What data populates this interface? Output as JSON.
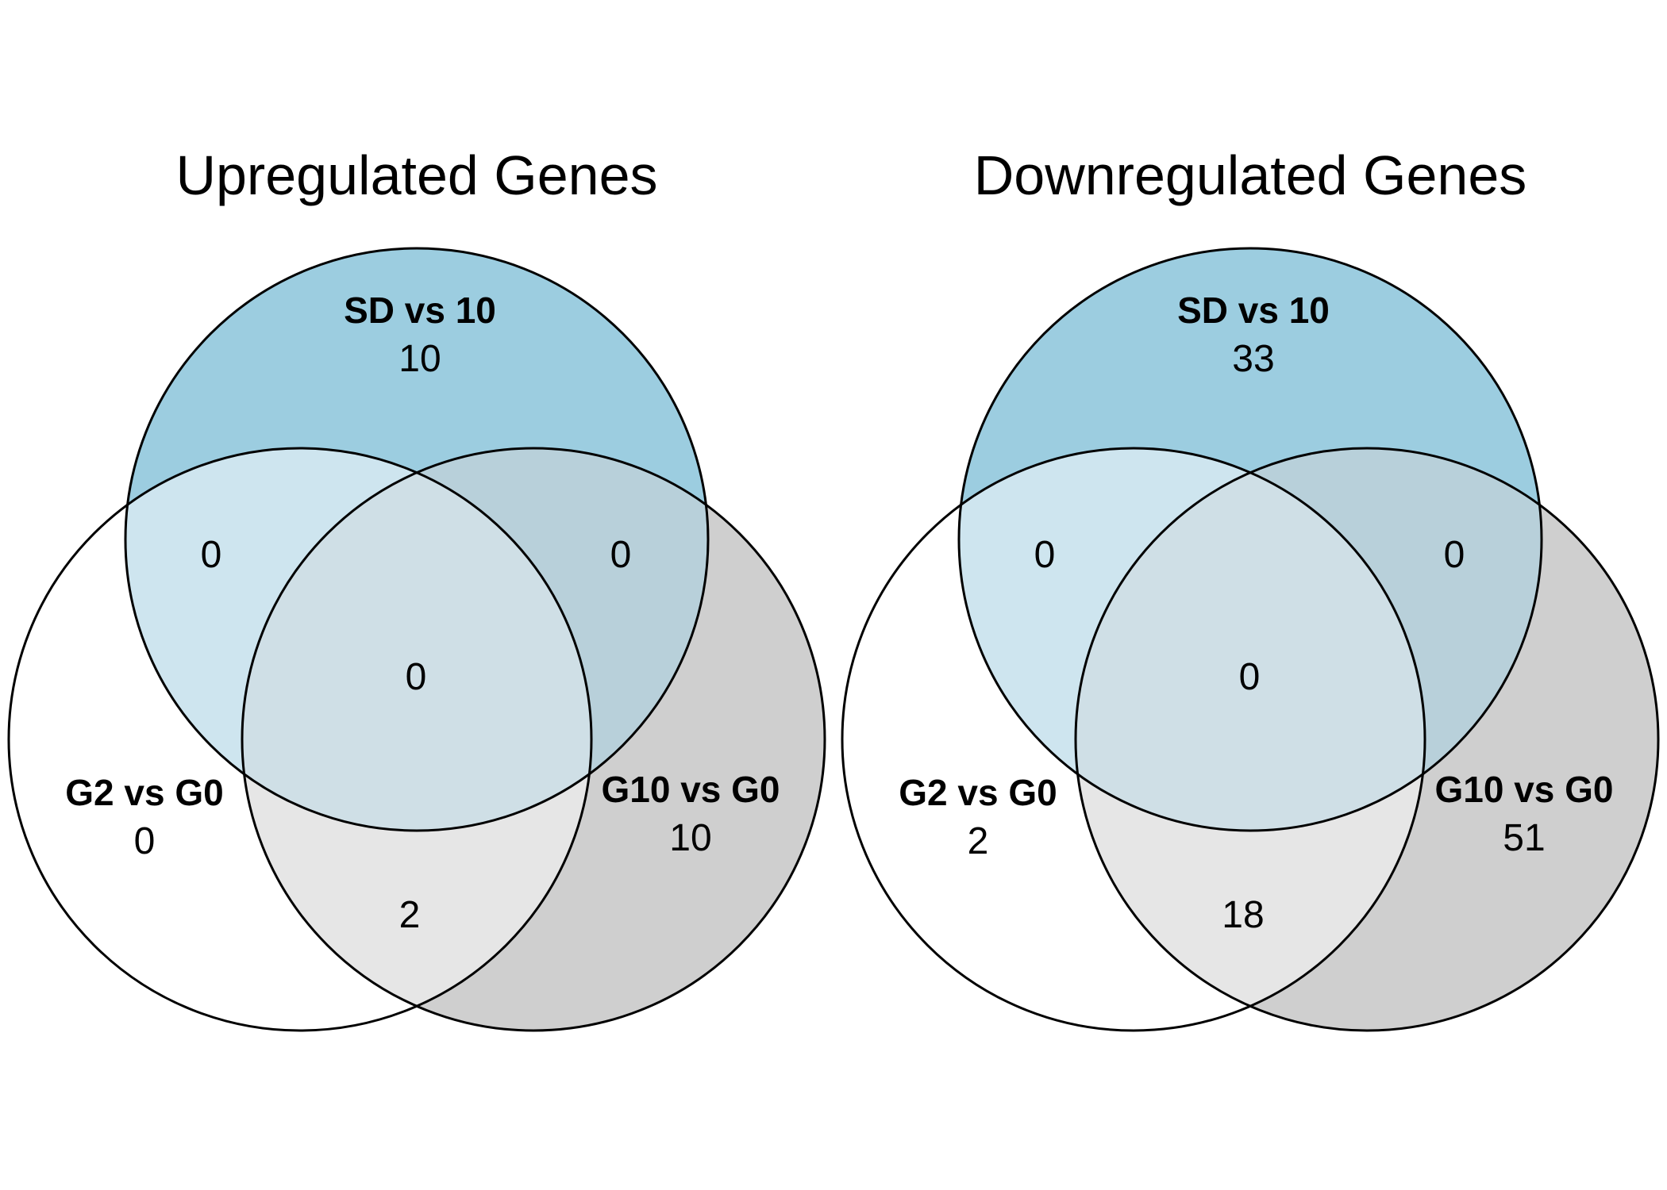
{
  "colors": {
    "set_a": "#9ccde0",
    "set_b": "#ffffff",
    "set_c": "#cfcfcf",
    "region_ab": "#cee5ef",
    "region_ac": "#b8d0da",
    "region_bc": "#e6e6e6",
    "region_abc": "#cfdfe6",
    "outline": "#000000"
  },
  "diagrams": [
    {
      "title": "Upregulated Genes",
      "sets": {
        "a": {
          "name": "SD vs 10",
          "count": "10"
        },
        "b": {
          "name": "G2 vs G0",
          "count": "0"
        },
        "c": {
          "name": "G10 vs G0",
          "count": "10"
        }
      },
      "overlaps": {
        "ab": "0",
        "ac": "0",
        "bc": "2",
        "abc": "0"
      }
    },
    {
      "title": "Downregulated Genes",
      "sets": {
        "a": {
          "name": "SD vs 10",
          "count": "33"
        },
        "b": {
          "name": "G2 vs G0",
          "count": "2"
        },
        "c": {
          "name": "G10 vs G0",
          "count": "51"
        }
      },
      "overlaps": {
        "ab": "0",
        "ac": "0",
        "bc": "18",
        "abc": "0"
      }
    }
  ]
}
